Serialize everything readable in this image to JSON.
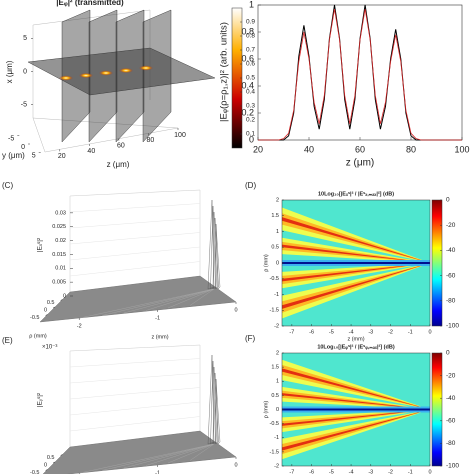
{
  "chart_data": [
    {
      "type": "slices3d",
      "title": "|Eᵩ|² (transmitted)",
      "xlabel": "z (μm)",
      "ylabel": "x (μm)",
      "zlabel": "y (μm)",
      "xlim": [
        10,
        100
      ],
      "xticks": [
        20,
        40,
        60,
        80,
        100
      ],
      "ylim": [
        -7,
        7
      ],
      "yticks": [
        5,
        0,
        -5
      ],
      "zlim": [
        -7,
        7
      ],
      "zticks": [
        -5,
        0,
        5
      ],
      "clim": [
        0,
        1
      ],
      "cticks": [
        0.1,
        0.2,
        0.3,
        0.4,
        0.5,
        0.6,
        0.7,
        0.8,
        0.9
      ],
      "colormap": "hot"
    },
    {
      "type": "line",
      "xlabel": "z (μm)",
      "ylabel": "|Eᵩ(ρ=ρ₁,z)|² (arb. units)",
      "x": [
        20,
        22,
        24,
        26,
        28,
        30,
        32,
        34,
        36,
        38,
        40,
        42,
        44,
        46,
        48,
        50,
        52,
        54,
        56,
        58,
        60,
        62,
        64,
        66,
        68,
        70,
        72,
        74,
        76,
        78,
        80,
        82,
        84,
        86,
        88,
        90,
        92,
        94,
        96,
        98,
        100
      ],
      "series": [
        {
          "color": "#000000",
          "values": [
            0,
            0,
            0,
            0,
            0,
            0,
            0.03,
            0.2,
            0.62,
            0.85,
            0.62,
            0.25,
            0.08,
            0.3,
            0.75,
            1,
            0.75,
            0.3,
            0.08,
            0.3,
            0.75,
            1,
            0.75,
            0.3,
            0.08,
            0.25,
            0.6,
            0.82,
            0.6,
            0.2,
            0.03,
            0,
            0,
            0,
            0,
            0,
            0,
            0,
            0,
            0,
            0
          ]
        },
        {
          "color": "#d62728",
          "values": [
            0,
            0,
            0,
            0,
            0,
            0.01,
            0.05,
            0.22,
            0.58,
            0.8,
            0.6,
            0.28,
            0.12,
            0.33,
            0.74,
            0.97,
            0.74,
            0.33,
            0.12,
            0.33,
            0.74,
            0.97,
            0.74,
            0.33,
            0.12,
            0.28,
            0.58,
            0.78,
            0.58,
            0.22,
            0.05,
            0.01,
            0,
            0,
            0,
            0,
            0,
            0,
            0,
            0,
            0
          ]
        }
      ],
      "xlim": [
        20,
        100
      ],
      "xticks": [
        20,
        40,
        60,
        80,
        100
      ],
      "ylim": [
        0,
        1
      ],
      "yticks": [
        0,
        0.2,
        0.4,
        0.6,
        0.8,
        1
      ]
    },
    {
      "type": "surface3d",
      "label": "(C)",
      "xlabel": "z (mm)",
      "ylabel": "ρ (mm)",
      "zlabel": "|Eₓˢ|²",
      "xlim": [
        -2.5,
        0
      ],
      "xticks": [
        -2,
        -1,
        0
      ],
      "ylim": [
        1,
        -1
      ],
      "yticks": [
        0.5,
        0,
        -0.5
      ],
      "zlim": [
        0,
        0.035
      ],
      "zticks": [
        0,
        0.005,
        0.01,
        0.015,
        0.02,
        0.025,
        0.03
      ]
    },
    {
      "type": "heatmap",
      "label": "(D)",
      "title": "10Log₁₀[|Eₓˢ|² / |Eˢₓ,ₘₐₓ|²] (dB)",
      "xlabel": "z (mm)",
      "ylabel": "ρ (mm)",
      "xlim": [
        -7.5,
        0
      ],
      "xticks": [
        -7,
        -6,
        -5,
        -4,
        -3,
        -2,
        -1,
        0
      ],
      "ylim": [
        -2,
        2
      ],
      "yticks": [
        -2,
        -1.5,
        -1,
        -0.5,
        0,
        0.5,
        1,
        1.5,
        2
      ],
      "clim": [
        -100,
        0
      ],
      "cticks": [
        -100,
        -80,
        -60,
        -40,
        -20,
        0
      ],
      "colormap": "jet"
    },
    {
      "type": "surface3d",
      "label": "(E)",
      "xlabel": "z (mm)",
      "ylabel": "ρ (mm)",
      "zlabel": "|Eᵧˢ|²",
      "zexponent": "×10⁻³",
      "xlim": [
        -2.5,
        0
      ],
      "xticks": [
        -2,
        -1,
        0
      ],
      "ylim": [
        1,
        -1
      ],
      "yticks": [
        0.5,
        0,
        -0.5
      ]
    },
    {
      "type": "heatmap",
      "label": "(F)",
      "title": "10Log₁₀[|Eᵩˢ|² / |Eˢᵩ,ₘₐₓ|²] (dB)",
      "xlabel": "z (mm)",
      "ylabel": "ρ (mm)",
      "xlim": [
        -7.5,
        0
      ],
      "xticks": [
        -7,
        -6,
        -5,
        -4,
        -3,
        -2,
        -1,
        0
      ],
      "ylim": [
        -2,
        2
      ],
      "yticks": [
        -2,
        -1.5,
        -1,
        -0.5,
        0,
        0.5,
        1,
        1.5,
        2
      ],
      "clim": [
        -100,
        0
      ],
      "cticks": [
        -100,
        -80,
        -60,
        -40,
        -20,
        0
      ],
      "colormap": "jet"
    }
  ]
}
